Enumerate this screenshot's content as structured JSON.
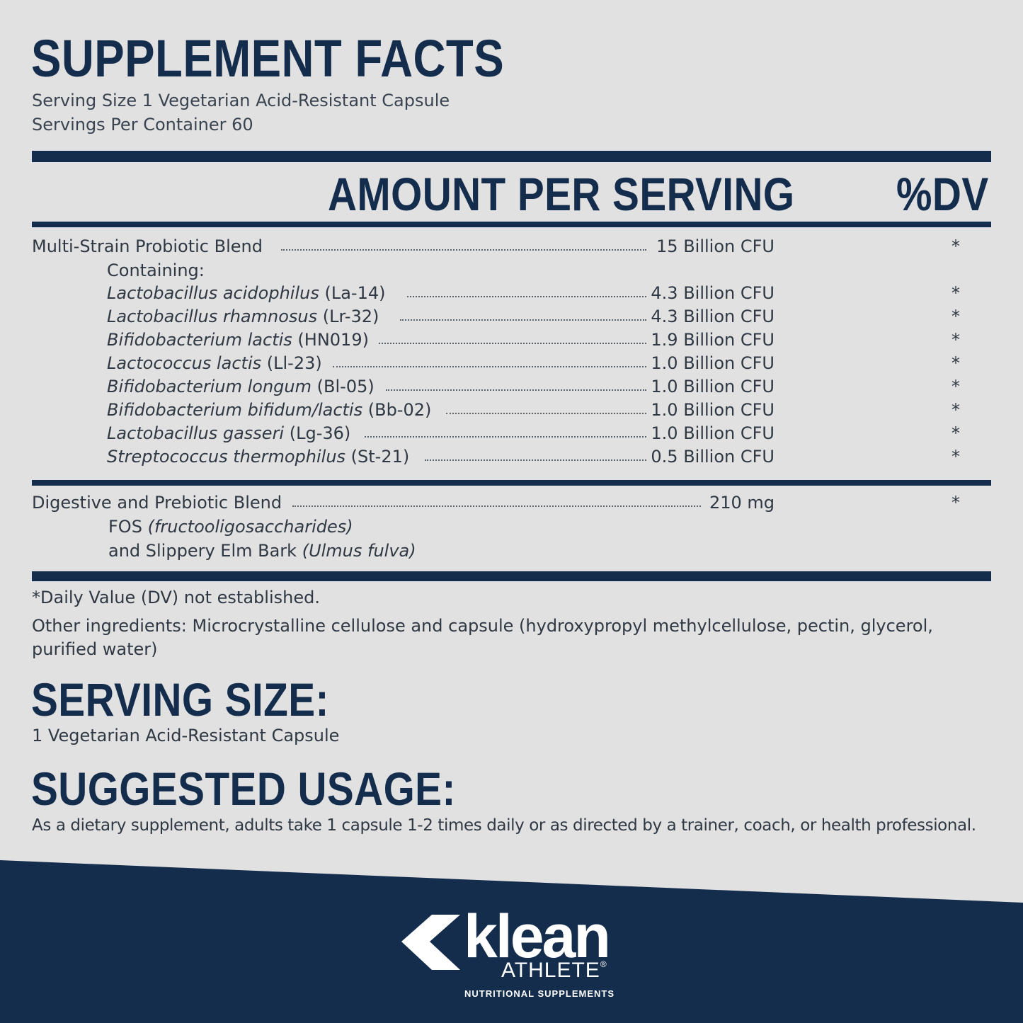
{
  "title": "SUPPLEMENT FACTS",
  "serving_size_line": "Serving Size 1 Vegetarian Acid-Resistant Capsule",
  "servings_per_container_line": "Servings Per Container 60",
  "columns": {
    "amount": "AMOUNT PER SERVING",
    "dv": "%DV"
  },
  "probiotic_blend": {
    "name": "Multi-Strain Probiotic Blend",
    "amount": "15 Billion CFU",
    "dv": "*"
  },
  "containing_label": "Containing:",
  "strains": [
    {
      "species": "Lactobacillus acidophilus",
      "code": "(La-14)",
      "amount": "4.3 Billion CFU",
      "dv": "*"
    },
    {
      "species": "Lactobacillus rhamnosus",
      "code": "(Lr-32)",
      "amount": "4.3 Billion CFU",
      "dv": "*"
    },
    {
      "species": "Bifidobacterium lactis",
      "code": "(HN019)",
      "amount": "1.9 Billion CFU",
      "dv": "*"
    },
    {
      "species": "Lactococcus lactis",
      "code": "(Ll-23)",
      "amount": "1.0 Billion CFU",
      "dv": "*"
    },
    {
      "species": "Bifidobacterium longum",
      "code": "(Bl-05)",
      "amount": "1.0 Billion CFU",
      "dv": "*"
    },
    {
      "species": "Bifidobacterium bifidum/lactis",
      "code": "(Bb-02)",
      "amount": "1.0 Billion CFU",
      "dv": "*"
    },
    {
      "species": "Lactobacillus gasseri",
      "code": "(Lg-36)",
      "amount": "1.0 Billion CFU",
      "dv": "*"
    },
    {
      "species": "Streptococcus thermophilus",
      "code": "(St-21)",
      "amount": "0.5 Billion CFU",
      "dv": "*"
    }
  ],
  "digestive_blend": {
    "name": "Digestive and Prebiotic Blend",
    "amount": "210 mg",
    "dv": "*",
    "line1_plain": "FOS",
    "line1_italic": "(fructooligosaccharides)",
    "line2_plain": "and Slippery Elm Bark",
    "line2_italic": "(Ulmus fulva)"
  },
  "dv_note": "*Daily Value (DV) not established.",
  "other_ingredients_line1": "Other ingredients: Microcrystalline cellulose and capsule (hydroxypropyl methylcellulose, pectin, glycerol,",
  "other_ingredients_line2": "purified water)",
  "serving_size_heading": "SERVING SIZE:",
  "serving_size_text": "1 Vegetarian Acid-Resistant Capsule",
  "suggested_usage_heading": "SUGGESTED USAGE:",
  "suggested_usage_text": "As a dietary supplement, adults take 1 capsule 1-2 times daily or as directed by a trainer, coach, or health professional.",
  "brand": {
    "word": "klean",
    "athlete": "ATHLETE",
    "reg": "®",
    "tagline": "NUTRITIONAL SUPPLEMENTS"
  },
  "colors": {
    "navy": "#152d4d",
    "background": "#e1e1e1",
    "text": "#2f3843"
  }
}
